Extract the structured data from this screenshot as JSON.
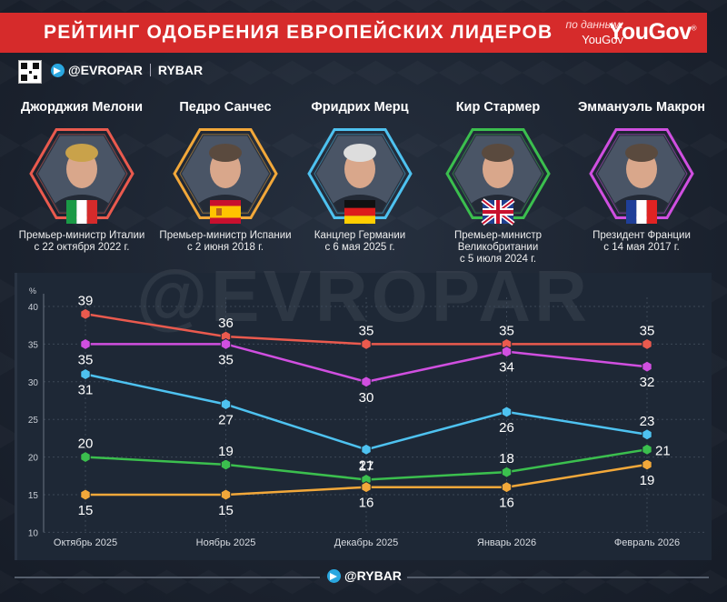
{
  "header": {
    "title": "РЕЙТИНГ ОДОБРЕНИЯ ЕВРОПЕЙСКИХ ЛИДЕРОВ",
    "source_prefix": "по данным:",
    "source_name": "YouGov",
    "logo": "YouGov"
  },
  "handles": {
    "main": "@EVROPAR",
    "second": "RYBAR",
    "footer": "@RYBAR",
    "watermark": "@EVROPAR"
  },
  "leaders": [
    {
      "name": "Джорджия Мелони",
      "desc1": "Премьер-министр Италии",
      "desc2": "с 22 октября 2022 г.",
      "desc3": "",
      "color": "#ea5a4e",
      "flag": "italy"
    },
    {
      "name": "Педро Санчес",
      "desc1": "Премьер-министр Испании",
      "desc2": "с 2 июня 2018 г.",
      "desc3": "",
      "color": "#f2a83a",
      "flag": "spain"
    },
    {
      "name": "Фридрих Мерц",
      "desc1": "Канцлер Германии",
      "desc2": "с 6 мая 2025 г.",
      "desc3": "",
      "color": "#4ec2f0",
      "flag": "germany"
    },
    {
      "name": "Кир Стармер",
      "desc1": "Премьер-министр",
      "desc2": "Великобритании",
      "desc3": "с 5 июля 2024 г.",
      "color": "#3bbf4e",
      "flag": "uk"
    },
    {
      "name": "Эммануэль Макрон",
      "desc1": "Президент Франции",
      "desc2": "с 14 мая 2017 г.",
      "desc3": "",
      "color": "#d04fe0",
      "flag": "france"
    }
  ],
  "chart_data": {
    "type": "line",
    "categories": [
      "Октябрь 2025",
      "Ноябрь 2025",
      "Декабрь 2025",
      "Январь 2026",
      "Февраль 2026"
    ],
    "ylabel": "%",
    "ylim": [
      10,
      40
    ],
    "yticks": [
      10,
      15,
      20,
      25,
      30,
      35,
      40
    ],
    "grid": true,
    "series": [
      {
        "name": "Джорджия Мелони",
        "color": "#ea5a4e",
        "values": [
          39,
          36,
          35,
          35,
          35
        ],
        "label_pos": [
          "above",
          "above",
          "above",
          "above",
          "above"
        ]
      },
      {
        "name": "Эммануэль Макрон",
        "color": "#d04fe0",
        "values": [
          35,
          35,
          30,
          34,
          32
        ],
        "label_pos": [
          "below",
          "below",
          "below",
          "below",
          "below"
        ]
      },
      {
        "name": "Фридрих Мерц",
        "color": "#4ec2f0",
        "values": [
          31,
          27,
          21,
          26,
          23
        ],
        "label_pos": [
          "below",
          "below",
          "below",
          "below",
          "above"
        ]
      },
      {
        "name": "Кир Стармер",
        "color": "#3bbf4e",
        "values": [
          20,
          19,
          17,
          18,
          21
        ],
        "label_pos": [
          "above",
          "above",
          "above",
          "above",
          "right"
        ]
      },
      {
        "name": "Педро Санчес",
        "color": "#f2a83a",
        "values": [
          15,
          15,
          16,
          16,
          19
        ],
        "label_pos": [
          "below",
          "below",
          "below",
          "below",
          "below"
        ]
      }
    ]
  }
}
